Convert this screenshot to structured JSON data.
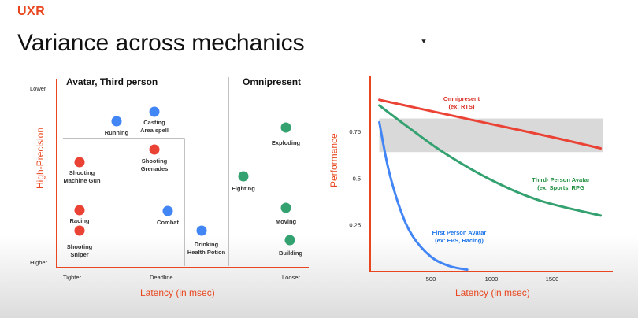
{
  "brand": "UXR",
  "title": "Variance across mechanics",
  "colors": {
    "red": "#ea4335",
    "blue": "#4285f4",
    "green": "#34a170",
    "axis": "#e8461e",
    "band": "#d9d9d9"
  },
  "chart_data": [
    {
      "type": "scatter",
      "ylabel": "High-Precision",
      "xlabel": "Latency (in msec)",
      "y_ticks": [
        "Lower",
        "Higher"
      ],
      "x_ticks": [
        "Tighter",
        "Deadline",
        "Looser"
      ],
      "region_labels": [
        "Avatar, Third person",
        "Omnipresent"
      ],
      "points": [
        {
          "label": "Running",
          "color": "blue"
        },
        {
          "label": "Casting\nArea spell",
          "color": "blue"
        },
        {
          "label": "Shooting\nGrenades",
          "color": "red"
        },
        {
          "label": "Shooting\nMachine Gun",
          "color": "red"
        },
        {
          "label": "Racing",
          "color": "red"
        },
        {
          "label": "Shooting\nSniper",
          "color": "red"
        },
        {
          "label": "Combat",
          "color": "blue"
        },
        {
          "label": "Drinking\nHealth Potion",
          "color": "blue"
        },
        {
          "label": "Fighting",
          "color": "green"
        },
        {
          "label": "Exploding",
          "color": "green"
        },
        {
          "label": "Moving",
          "color": "green"
        },
        {
          "label": "Building",
          "color": "green"
        }
      ]
    },
    {
      "type": "line",
      "ylabel": "Performance",
      "xlabel": "Latency (in msec)",
      "xlim": [
        0,
        2000
      ],
      "ylim": [
        0,
        1.05
      ],
      "x_ticks": [
        500,
        1000,
        1500
      ],
      "y_ticks": [
        0.25,
        0.5,
        0.75
      ],
      "y_tick_labels": [
        "0.25",
        "0.5",
        "0.75"
      ],
      "band": [
        0.64,
        0.82
      ],
      "series": [
        {
          "name": "Omnipresent\n(ex: RTS)",
          "color": "red",
          "x": [
            75,
            500,
            1000,
            1500,
            1900
          ],
          "y": [
            0.92,
            0.86,
            0.79,
            0.72,
            0.66
          ]
        },
        {
          "name": "Third- Person Avatar\n(ex: Sports, RPG",
          "color": "green",
          "x": [
            75,
            300,
            600,
            1000,
            1400,
            1900
          ],
          "y": [
            0.89,
            0.78,
            0.64,
            0.49,
            0.38,
            0.3
          ]
        },
        {
          "name": "First Person Avatar\n(ex: FPS, Racing)",
          "color": "blue",
          "x": [
            75,
            150,
            250,
            350,
            500,
            650,
            800
          ],
          "y": [
            0.8,
            0.55,
            0.33,
            0.19,
            0.08,
            0.03,
            0.01
          ]
        }
      ]
    }
  ]
}
